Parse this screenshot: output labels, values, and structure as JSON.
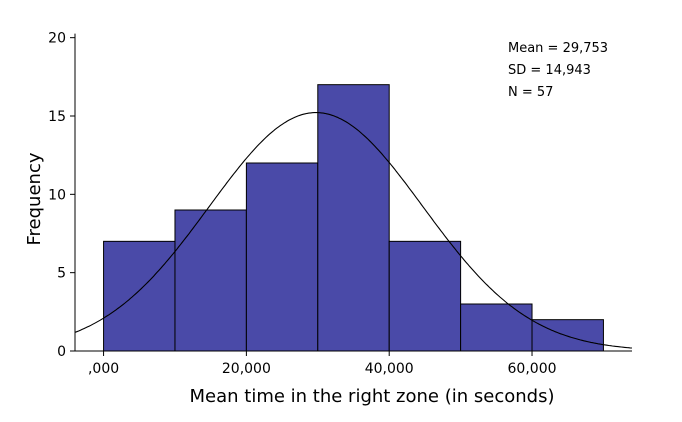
{
  "chart_data": {
    "type": "bar",
    "subtype": "histogram",
    "xlabel": "Mean time in the right zone (in seconds)",
    "ylabel": "Frequency",
    "xlim": [
      -4000,
      74000
    ],
    "ylim": [
      0,
      21
    ],
    "x_ticks": [
      {
        "value": 0,
        "label": ",000"
      },
      {
        "value": 20000,
        "label": "20,000"
      },
      {
        "value": 40000,
        "label": "40,000"
      },
      {
        "value": 60000,
        "label": "60,000"
      }
    ],
    "y_ticks": [
      {
        "value": 0,
        "label": "0"
      },
      {
        "value": 5,
        "label": "5"
      },
      {
        "value": 10,
        "label": "10"
      },
      {
        "value": 15,
        "label": "15"
      },
      {
        "value": 20,
        "label": "20"
      }
    ],
    "bins": [
      {
        "start": 0,
        "end": 10000,
        "count": 7
      },
      {
        "start": 10000,
        "end": 20000,
        "count": 9
      },
      {
        "start": 20000,
        "end": 30000,
        "count": 12
      },
      {
        "start": 30000,
        "end": 40000,
        "count": 17
      },
      {
        "start": 40000,
        "end": 50000,
        "count": 7
      },
      {
        "start": 50000,
        "end": 60000,
        "count": 3
      },
      {
        "start": 60000,
        "end": 70000,
        "count": 2
      }
    ],
    "normal_curve": {
      "mean": 29753,
      "sd": 14943,
      "n": 57,
      "bin_width": 10000
    },
    "stats": {
      "mean": "Mean = 29,753",
      "sd": "SD = 14,943",
      "n": "N = 57"
    },
    "bar_color": "#4a4aa8",
    "grid": false
  }
}
